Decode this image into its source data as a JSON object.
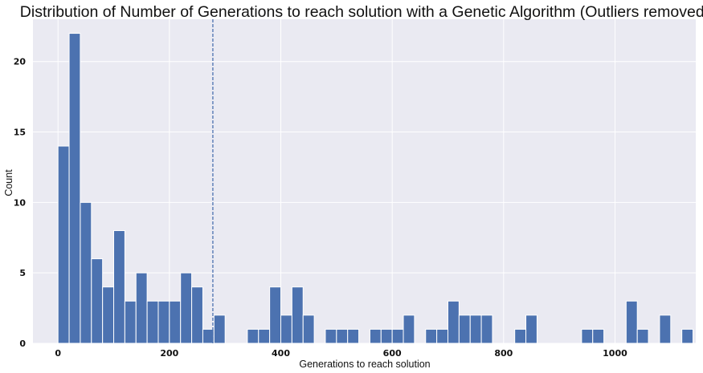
{
  "chart_data": {
    "type": "bar",
    "title": "Distribution of Number of Generations to reach solution with a Genetic Algorithm (Outliers removed)",
    "xlabel": "Generations to reach solution",
    "ylabel": "Count",
    "xlim": [
      -45,
      1145
    ],
    "ylim": [
      0,
      23
    ],
    "xticks": [
      0,
      200,
      400,
      600,
      800,
      1000
    ],
    "yticks": [
      0,
      5,
      10,
      15,
      20
    ],
    "grid": true,
    "bin_start": 0,
    "bin_width": 20,
    "counts": [
      14,
      22,
      10,
      6,
      4,
      8,
      3,
      5,
      3,
      3,
      3,
      5,
      4,
      1,
      2,
      0,
      0,
      1,
      1,
      4,
      2,
      4,
      2,
      0,
      1,
      1,
      1,
      0,
      1,
      1,
      1,
      2,
      0,
      1,
      1,
      3,
      2,
      2,
      2,
      0,
      0,
      1,
      2,
      0,
      0,
      0,
      0,
      1,
      1,
      0,
      0,
      3,
      1,
      0,
      2,
      0,
      1
    ],
    "vline_x": 278,
    "colors": {
      "bar": "#4c72b0",
      "bar_edge": "#ffffff",
      "background": "#eaeaf2",
      "grid": "#ffffff",
      "vline": "#4c72b0"
    }
  }
}
